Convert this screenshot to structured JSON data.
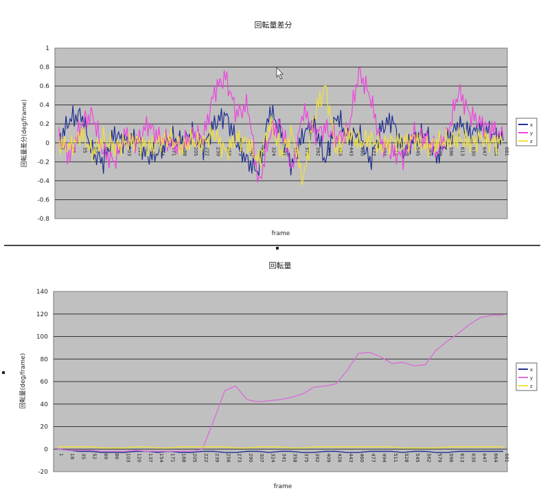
{
  "chart_data": [
    {
      "type": "line",
      "title": "回転量差分",
      "xlabel": "frame",
      "ylabel": "回転量差分(deg/frame)",
      "ylim": [
        -0.8,
        1
      ],
      "yticks": [
        "1",
        "0.8",
        "0.6",
        "0.4",
        "0.2",
        "0",
        "-0.2",
        "-0.4",
        "-0.6",
        "-0.8"
      ],
      "xticks": [
        "1",
        "18",
        "35",
        "52",
        "69",
        "86",
        "103",
        "120",
        "137",
        "154",
        "171",
        "188",
        "205",
        "222",
        "239",
        "256",
        "273",
        "290",
        "307",
        "324",
        "341",
        "358",
        "375",
        "392",
        "409",
        "426",
        "443",
        "460",
        "477",
        "494",
        "511",
        "528",
        "545",
        "562",
        "579",
        "596",
        "613",
        "630",
        "647",
        "664",
        "681"
      ],
      "grid": true,
      "legend": "right",
      "series": [
        {
          "name": "x",
          "color": "#1f2f8f",
          "values": [
            0.02,
            0.25,
            0.3,
            -0.1,
            -0.2,
            0.1,
            0,
            0.05,
            -0.15,
            -0.1,
            0.05,
            0.02,
            0.1,
            -0.05,
            0.2,
            0.3,
            0,
            -0.2,
            -0.3,
            0.35,
            0.1,
            -0.25,
            0.1,
            0.2,
            -0.2,
            0.3,
            0.05,
            0.1,
            -0.2,
            0.15,
            0.25,
            -0.1,
            0.05,
            0.1,
            -0.15,
            0.02,
            0.2,
            0.1,
            0.15,
            0.1,
            0.02
          ]
        },
        {
          "name": "y",
          "color": "#ee44dd",
          "values": [
            0.05,
            -0.15,
            0.2,
            0.3,
            -0.1,
            -0.2,
            0.1,
            0,
            0.2,
            0.05,
            0,
            -0.05,
            0.1,
            0.05,
            0.55,
            0.7,
            0.3,
            0.4,
            -0.45,
            0.1,
            0.2,
            -0.3,
            0.35,
            0.1,
            0.15,
            0.05,
            0.1,
            0.75,
            0.5,
            0,
            -0.1,
            -0.15,
            0.1,
            0.05,
            -0.1,
            0.1,
            0.55,
            0.3,
            0.2,
            0.15,
            0.05
          ]
        },
        {
          "name": "z",
          "color": "#f2e23a",
          "values": [
            0,
            -0.05,
            0.1,
            -0.1,
            0.05,
            -0.05,
            0,
            0.02,
            -0.05,
            0,
            0.05,
            -0.05,
            0.02,
            0,
            0.1,
            -0.1,
            0.05,
            0,
            -0.2,
            0.2,
            -0.1,
            0.1,
            -0.4,
            0.3,
            0.6,
            -0.1,
            0.1,
            0,
            0.05,
            -0.05,
            0.02,
            0,
            0.05,
            -0.05,
            0,
            0.02,
            0.05,
            0,
            0.05,
            0,
            0.02
          ]
        }
      ]
    },
    {
      "type": "line",
      "title": "回転量",
      "xlabel": "frame",
      "ylabel": "回転量(deg/frame)",
      "ylim": [
        -20,
        140
      ],
      "yticks": [
        "140",
        "120",
        "100",
        "80",
        "60",
        "40",
        "20",
        "0",
        "-20"
      ],
      "xticks": [
        "1",
        "18",
        "35",
        "52",
        "69",
        "86",
        "103",
        "120",
        "137",
        "154",
        "171",
        "188",
        "205",
        "222",
        "239",
        "256",
        "273",
        "290",
        "307",
        "324",
        "341",
        "358",
        "375",
        "392",
        "409",
        "426",
        "443",
        "460",
        "477",
        "494",
        "511",
        "528",
        "545",
        "562",
        "579",
        "596",
        "613",
        "630",
        "647",
        "664",
        "681"
      ],
      "grid": true,
      "legend": "right",
      "series": [
        {
          "name": "x",
          "color": "#1f2f8f",
          "values": [
            0,
            -1,
            -2,
            -2,
            -3,
            -3,
            -3,
            -2,
            -2,
            -3,
            -2,
            -3,
            -3,
            -2,
            -2,
            -3,
            -3,
            -2,
            -2,
            -3,
            -2,
            -2,
            -3,
            -3,
            -2,
            -2,
            -3,
            -3,
            -2,
            -2,
            -2,
            -3,
            -2,
            -2,
            -3,
            -3,
            -2,
            -2,
            -2,
            -2,
            -2
          ]
        },
        {
          "name": "y",
          "color": "#d86fd8",
          "values": [
            0,
            -1,
            -1,
            -1,
            -2,
            -2,
            -2,
            -1,
            -2,
            -2,
            -2,
            -2,
            -2,
            0,
            25,
            52,
            56,
            44,
            42,
            43,
            44,
            46,
            49,
            55,
            56,
            58,
            70,
            85,
            86,
            82,
            76,
            77,
            74,
            75,
            88,
            96,
            103,
            111,
            117,
            119,
            119
          ]
        },
        {
          "name": "z",
          "color": "#f2e23a",
          "values": [
            2,
            2,
            2,
            2,
            1,
            1,
            1,
            2,
            2,
            1,
            1,
            2,
            2,
            2,
            2,
            2,
            1,
            1,
            2,
            2,
            2,
            1,
            1,
            2,
            2,
            2,
            2,
            2,
            2,
            2,
            2,
            1,
            1,
            1,
            1,
            2,
            2,
            2,
            2,
            2,
            2
          ]
        }
      ]
    }
  ]
}
